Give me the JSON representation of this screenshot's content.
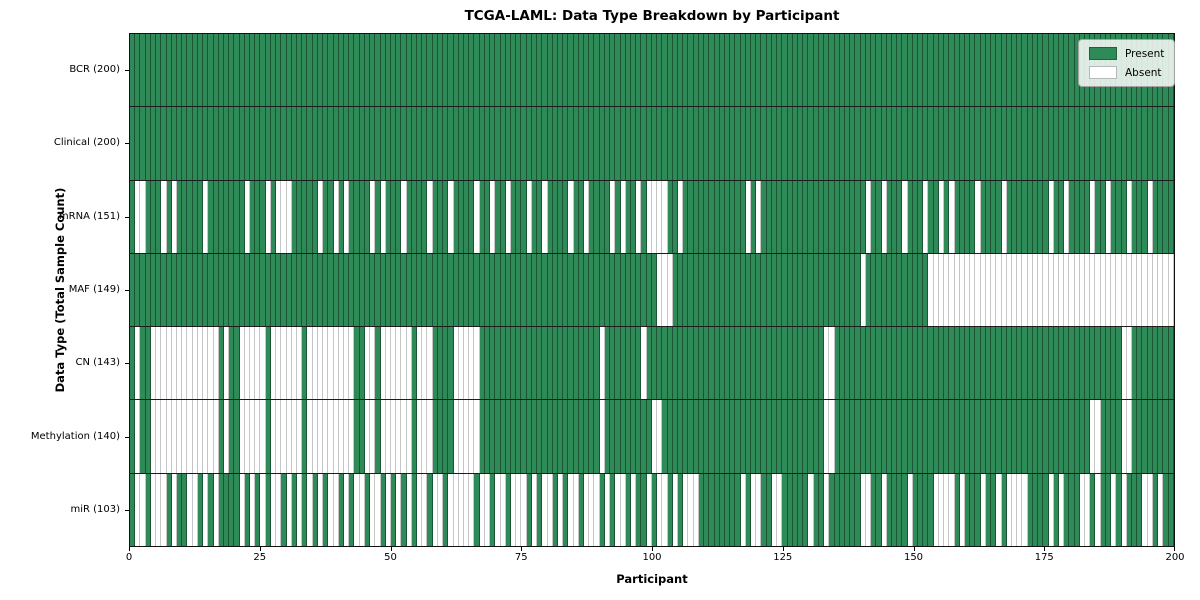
{
  "title": "TCGA-LAML: Data Type Breakdown by Participant",
  "x_axis": {
    "label": "Participant",
    "ticks": [
      "0",
      "25",
      "50",
      "75",
      "100",
      "125",
      "150",
      "175",
      "200"
    ]
  },
  "y_axis": {
    "label": "Data Type (Total Sample Count)"
  },
  "legend": {
    "present_label": "Present",
    "absent_label": "Absent"
  },
  "colors": {
    "present": "#2E8B57",
    "absent": "#FFFFFF",
    "grid_line": "#1c1c1c"
  },
  "chart_data": {
    "type": "heatmap",
    "title": "TCGA-LAML: Data Type Breakdown by Participant",
    "xlabel": "Participant",
    "ylabel": "Data Type (Total Sample Count)",
    "x_range": [
      0,
      200
    ],
    "n_participants": 200,
    "legend_entries": [
      "Present",
      "Absent"
    ],
    "legend_position": "upper right",
    "rows": [
      {
        "label": "BCR (200)",
        "data_type": "BCR",
        "present_count": 200,
        "absent_count": 0,
        "absent_participants": []
      },
      {
        "label": "Clinical (200)",
        "data_type": "Clinical",
        "present_count": 200,
        "absent_count": 0,
        "absent_participants": []
      },
      {
        "label": "mRNA (151)",
        "data_type": "mRNA",
        "present_count": 151,
        "absent_count": 49,
        "absent_participants": [
          2,
          3,
          7,
          9,
          15,
          23,
          27,
          29,
          30,
          31,
          37,
          40,
          42,
          47,
          49,
          53,
          58,
          62,
          67,
          70,
          73,
          77,
          80,
          85,
          88,
          93,
          95,
          98,
          100,
          101,
          102,
          103,
          106,
          119,
          121,
          142,
          145,
          149,
          153,
          156,
          158,
          163,
          168,
          177,
          180,
          185,
          188,
          192,
          196
        ]
      },
      {
        "label": "MAF (149)",
        "data_type": "MAF",
        "present_count": 149,
        "absent_count": 51,
        "absent_participants": [
          102,
          103,
          104,
          141,
          154,
          155,
          156,
          157,
          158,
          159,
          160,
          161,
          162,
          163,
          164,
          165,
          166,
          167,
          168,
          169,
          170,
          171,
          172,
          173,
          174,
          175,
          176,
          177,
          178,
          179,
          180,
          181,
          182,
          183,
          184,
          185,
          186,
          187,
          188,
          189,
          190,
          191,
          192,
          193,
          194,
          195,
          196,
          197,
          198,
          199,
          200
        ]
      },
      {
        "label": "CN (143)",
        "data_type": "CN",
        "present_count": 143,
        "absent_count": 57,
        "absent_participants": [
          2,
          5,
          6,
          7,
          8,
          9,
          10,
          11,
          12,
          13,
          14,
          15,
          16,
          17,
          19,
          22,
          23,
          24,
          25,
          26,
          28,
          29,
          30,
          31,
          32,
          33,
          35,
          36,
          37,
          38,
          39,
          40,
          41,
          42,
          43,
          46,
          47,
          49,
          50,
          51,
          52,
          53,
          54,
          56,
          57,
          58,
          63,
          64,
          65,
          66,
          67,
          91,
          99,
          134,
          135,
          191,
          192
        ]
      },
      {
        "label": "Methylation (140)",
        "data_type": "Methylation",
        "present_count": 140,
        "absent_count": 60,
        "absent_participants": [
          2,
          5,
          6,
          7,
          8,
          9,
          10,
          11,
          12,
          13,
          14,
          15,
          16,
          17,
          19,
          22,
          23,
          24,
          25,
          26,
          28,
          29,
          30,
          31,
          32,
          33,
          35,
          36,
          37,
          38,
          39,
          40,
          41,
          42,
          43,
          46,
          47,
          49,
          50,
          51,
          52,
          53,
          54,
          56,
          57,
          58,
          63,
          64,
          65,
          66,
          67,
          91,
          101,
          102,
          134,
          135,
          185,
          186,
          191,
          192
        ]
      },
      {
        "label": "miR (103)",
        "data_type": "miR",
        "present_count": 103,
        "absent_count": 97,
        "absent_participants": [
          2,
          3,
          5,
          6,
          7,
          9,
          12,
          13,
          15,
          17,
          22,
          24,
          26,
          28,
          29,
          31,
          33,
          35,
          37,
          39,
          40,
          42,
          44,
          45,
          47,
          48,
          50,
          52,
          54,
          56,
          57,
          59,
          60,
          62,
          63,
          64,
          65,
          66,
          68,
          69,
          71,
          72,
          74,
          75,
          76,
          78,
          80,
          81,
          83,
          85,
          86,
          88,
          89,
          90,
          92,
          94,
          95,
          97,
          100,
          102,
          103,
          105,
          107,
          108,
          109,
          118,
          120,
          121,
          124,
          125,
          131,
          134,
          141,
          142,
          145,
          150,
          155,
          156,
          157,
          158,
          160,
          164,
          167,
          169,
          170,
          171,
          172,
          177,
          179,
          183,
          184,
          186,
          189,
          191,
          195,
          196,
          198
        ]
      }
    ]
  }
}
